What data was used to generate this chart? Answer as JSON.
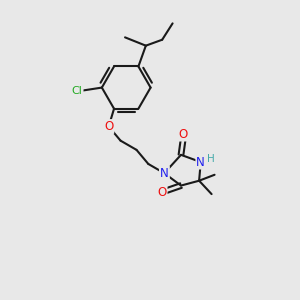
{
  "background_color": "#e8e8e8",
  "bond_color": "#1a1a1a",
  "bond_width": 1.5,
  "atom_colors": {
    "O": "#ee1111",
    "N": "#2020ee",
    "Cl": "#22aa22",
    "H": "#44aaaa",
    "C": "#1a1a1a"
  },
  "font_size": 7.5,
  "fig_width": 3.0,
  "fig_height": 3.0,
  "dpi": 100
}
